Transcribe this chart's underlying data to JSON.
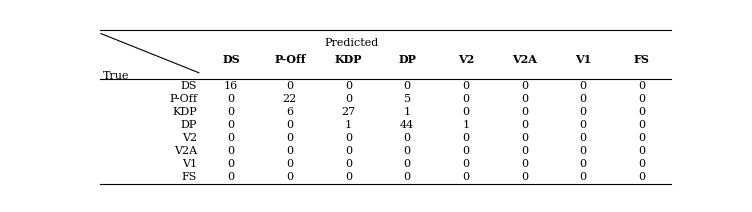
{
  "predicted_label": "Predicted",
  "true_label": "True",
  "columns": [
    "DS",
    "P-Off",
    "KDP",
    "DP",
    "V2",
    "V2A",
    "V1",
    "FS"
  ],
  "rows": [
    "DS",
    "P-Off",
    "KDP",
    "DP",
    "V2",
    "V2A",
    "V1",
    "FS"
  ],
  "matrix": [
    [
      16,
      0,
      0,
      0,
      0,
      0,
      0,
      0
    ],
    [
      0,
      22,
      0,
      5,
      0,
      0,
      0,
      0
    ],
    [
      0,
      6,
      27,
      1,
      0,
      0,
      0,
      0
    ],
    [
      0,
      0,
      1,
      44,
      1,
      0,
      0,
      0
    ],
    [
      0,
      0,
      0,
      0,
      0,
      0,
      0,
      0
    ],
    [
      0,
      0,
      0,
      0,
      0,
      0,
      0,
      0
    ],
    [
      0,
      0,
      0,
      0,
      0,
      0,
      0,
      0
    ],
    [
      0,
      0,
      0,
      0,
      0,
      0,
      0,
      0
    ]
  ],
  "bg_color": "#ffffff",
  "text_color": "#000000",
  "font_size": 8.0,
  "header_font_size": 8.0
}
